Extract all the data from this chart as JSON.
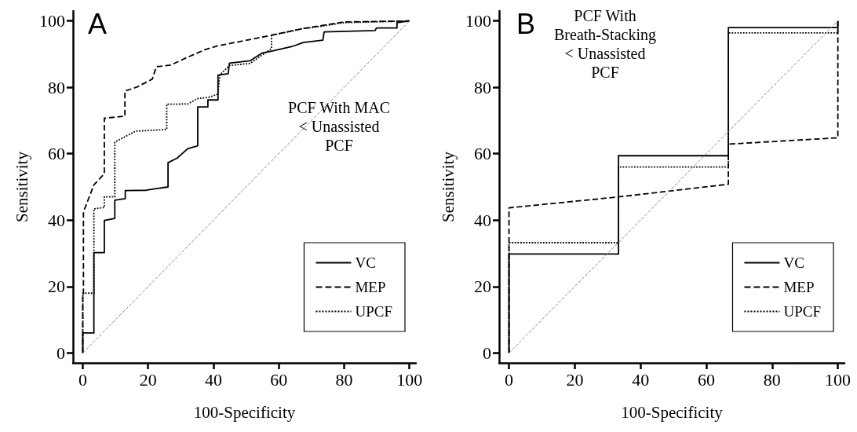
{
  "chart_data": [
    {
      "type": "line",
      "xlabel": "100-Specificity",
      "ylabel": "Sensitivity",
      "annotations": [
        "A",
        "PCF With MAC\n< Unassisted\nPCF"
      ],
      "xlim": [
        -3,
        102
      ],
      "ylim": [
        -3,
        103
      ],
      "xticks": [
        0,
        20,
        40,
        60,
        80,
        100
      ],
      "yticks": [
        0,
        20,
        40,
        60,
        80,
        100
      ],
      "grid": false,
      "legend": "bottom right",
      "marker": "none",
      "series": [
        {
          "name": "VC",
          "color": "#000000",
          "line_style": "solid",
          "x": [
            0,
            0,
            3.4,
            3.4,
            6.6,
            6.6,
            9.8,
            9.8,
            13,
            13,
            19.4,
            22.5,
            26.1,
            26.1,
            28.9,
            32.1,
            35.2,
            35.2,
            38.3,
            38.3,
            41.4,
            41.4,
            44.5,
            44.9,
            51.2,
            54.8,
            57.8,
            64.1,
            67.5,
            73.5,
            73.9,
            89.5,
            89.9,
            96.2,
            96.2,
            100
          ],
          "values": [
            0,
            6,
            6,
            30.2,
            30.2,
            39.9,
            40.5,
            46,
            46.5,
            48.9,
            49,
            49.5,
            50,
            57.3,
            58.7,
            61.5,
            62.4,
            74.1,
            74.1,
            76.2,
            76.2,
            83.7,
            84.1,
            87.3,
            88,
            90.3,
            90.9,
            92.3,
            93.5,
            94.2,
            96.7,
            97.1,
            97.9,
            97.9,
            99.5,
            100
          ]
        },
        {
          "name": "MEP",
          "color": "#000000",
          "line_style": "dashed",
          "x": [
            0,
            0,
            0.2,
            0.2,
            3.4,
            6.6,
            6.6,
            12.9,
            12.9,
            16.4,
            21.3,
            22.5,
            26.9,
            31.7,
            37.3,
            41.3,
            53.8,
            57.7,
            67.3,
            80,
            100
          ],
          "values": [
            0,
            17.7,
            17.7,
            42.5,
            50.6,
            54,
            70.7,
            71.3,
            78.9,
            80,
            82.5,
            86.2,
            86.7,
            88.9,
            91.3,
            92.5,
            94.9,
            95.7,
            97.7,
            99.7,
            100
          ]
        },
        {
          "name": "UPCF",
          "color": "#000000",
          "line_style": "dotted",
          "x": [
            0,
            0,
            3.4,
            3.4,
            6.6,
            6.6,
            9.8,
            9.8,
            16.2,
            25.7,
            25.7,
            32.2,
            35,
            38.6,
            41.4,
            41.9,
            44.9,
            51.2,
            57.8,
            57.8,
            67.5,
            70.3,
            80,
            100
          ],
          "values": [
            0,
            18,
            18,
            43.4,
            43.8,
            47,
            47,
            63.5,
            66.8,
            67.3,
            74.9,
            75,
            76.6,
            77,
            78,
            83.7,
            86.6,
            87.2,
            91.7,
            95.7,
            97.7,
            98,
            99.5,
            100
          ]
        },
        {
          "color": "#888888",
          "line_style": "dashed",
          "x": [
            0,
            100
          ],
          "values": [
            0,
            100
          ]
        }
      ]
    },
    {
      "type": "line",
      "xlabel": "100-Specificity",
      "ylabel": "Sensitivity",
      "annotations": [
        "B",
        "PCF With\nBreath-Stacking\n< Unassisted\nPCF"
      ],
      "xlim": [
        -3,
        102
      ],
      "ylim": [
        -3,
        103
      ],
      "xticks": [
        0,
        20,
        40,
        60,
        80,
        100
      ],
      "yticks": [
        0,
        20,
        40,
        60,
        80,
        100
      ],
      "grid": false,
      "legend": "bottom right",
      "marker": "none",
      "series": [
        {
          "name": "VC",
          "color": "#000000",
          "line_style": "solid",
          "x": [
            0,
            0,
            33.3,
            33.3,
            66.7,
            66.7,
            100,
            100
          ],
          "values": [
            0,
            29.8,
            29.8,
            59.4,
            59.4,
            98,
            98,
            100
          ]
        },
        {
          "name": "MEP",
          "color": "#000000",
          "line_style": "dashed",
          "x": [
            0,
            0,
            33.3,
            66.7,
            66.7,
            100,
            100
          ],
          "values": [
            0,
            43.7,
            47,
            50.8,
            62.9,
            64.8,
            100
          ]
        },
        {
          "name": "UPCF",
          "color": "#000000",
          "line_style": "dotted",
          "x": [
            0,
            0,
            33.3,
            33.3,
            66.7,
            66.7,
            100,
            100
          ],
          "values": [
            0,
            33.2,
            33.2,
            56,
            56,
            96.4,
            96.4,
            100
          ]
        },
        {
          "color": "#888888",
          "line_style": "dashed",
          "x": [
            0,
            100
          ],
          "values": [
            0,
            100
          ]
        }
      ]
    }
  ]
}
